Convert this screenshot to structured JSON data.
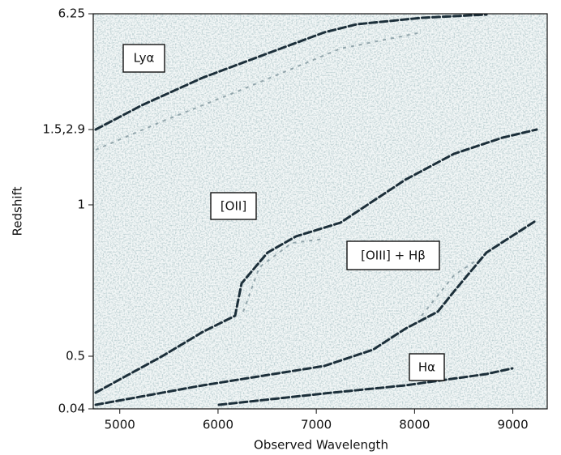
{
  "chart_data": {
    "type": "image",
    "x_label": "Observed Wavelength",
    "y_label": "Redshift",
    "xlim": [
      4730,
      9350
    ],
    "xticks": [
      5000,
      6000,
      7000,
      8000,
      9000
    ],
    "yticks": [
      6.25,
      {
        "value": 1.5,
        "label": "1.5,2.9"
      },
      1.0,
      0.5,
      0.04
    ],
    "annotations": [
      "Lyα",
      "[OII]",
      "[OIII] + Hβ",
      "Hα"
    ]
  }
}
